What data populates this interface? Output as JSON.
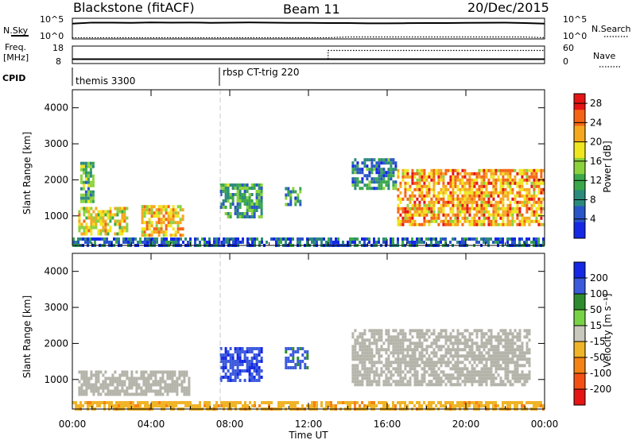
{
  "header": {
    "radar": "Blackstone (fitACF)",
    "beam": "Beam 11",
    "date": "20/Dec/2015"
  },
  "strip_labels": {
    "nsky": "N.Sky",
    "nsearch": "N.Search",
    "freq_top": "Freq.",
    "freq_unit": "[MHz]",
    "nave": "Nave",
    "cpid": "CPID",
    "noise_top_left": "10^5",
    "noise_bot_left": "10^0",
    "noise_top_right": "10^5",
    "noise_bot_right": "10^0",
    "freq_hi": "18",
    "freq_lo": "8",
    "nave_hi": "60",
    "nave_lo": "0"
  },
  "cpid_segments": [
    {
      "label": "themis 3300",
      "start_hour": 0.0
    },
    {
      "label": "rbsp CT-trig 220",
      "start_hour": 7.5
    }
  ],
  "x_axis": {
    "label": "Time UT",
    "ticks": [
      "00:00",
      "04:00",
      "08:00",
      "12:00",
      "16:00",
      "20:00",
      "00:00"
    ],
    "range_hours": [
      0,
      24
    ]
  },
  "colors": {
    "power_scale": [
      "#1428e6",
      "#2a55c8",
      "#2c8a7c",
      "#3aa84a",
      "#8cd23c",
      "#f0e61e",
      "#f5a81e",
      "#f56414",
      "#e61414"
    ],
    "velocity_scale": [
      "#1428e6",
      "#3c5adc",
      "#2e8c2e",
      "#78d246",
      "#c8c8bc",
      "#f0b428",
      "#f58214",
      "#f55014",
      "#e61414"
    ],
    "ground_scatter": "#b4b4aa"
  },
  "chart_data": [
    {
      "type": "line",
      "title": "Blackstone (fitACF)",
      "series": [
        {
          "name": "N.Sky",
          "x": [
            0,
            1,
            2,
            3,
            4,
            5,
            6,
            7,
            8,
            9,
            10,
            11,
            12,
            13,
            14,
            15,
            16,
            17,
            18,
            19,
            20,
            21,
            22,
            23,
            24
          ],
          "y": [
            5000,
            9000,
            9000,
            8000,
            10000,
            9000,
            9500,
            8000,
            9000,
            10000,
            9000,
            8000,
            8000,
            7000,
            7000,
            6000,
            6000,
            6500,
            7000,
            7000,
            8000,
            8500,
            9000,
            7000,
            5000
          ]
        },
        {
          "name": "N.Search",
          "x": [
            0,
            1,
            2,
            3,
            4,
            5,
            6,
            7,
            8,
            9,
            10,
            11,
            12,
            13,
            14,
            15,
            16,
            17,
            18,
            19,
            20,
            21,
            22,
            23,
            24
          ],
          "y": [
            2,
            2,
            2,
            2,
            2,
            2,
            2,
            2,
            2,
            2,
            2,
            2,
            2,
            2,
            3,
            3,
            3,
            3,
            3,
            3,
            3,
            3,
            3,
            3,
            2
          ]
        }
      ],
      "ylabel": "N.Sky",
      "ylabel_right": "N.Search",
      "ylim": [
        1,
        100000
      ]
    },
    {
      "type": "line",
      "series": [
        {
          "name": "Freq.",
          "x": [
            0,
            13,
            13,
            24
          ],
          "y": [
            10.5,
            10.5,
            10.5,
            10.5
          ]
        },
        {
          "name": "Nave",
          "x": [
            0,
            13,
            13,
            24
          ],
          "y": [
            15,
            15,
            45,
            45
          ]
        }
      ],
      "ylabel": "Freq. [MHz]",
      "ylabel_right": "Nave",
      "ylim": [
        8,
        18
      ],
      "ylim_right": [
        0,
        60
      ]
    },
    {
      "type": "heatmap",
      "xlabel": "Time UT",
      "ylabel": "Slant Range [km]",
      "ylim": [
        180,
        4500
      ],
      "yticks": [
        1000,
        2000,
        3000,
        4000
      ],
      "colorbar": {
        "label": "Power [dB]",
        "ticks": [
          4,
          8,
          12,
          16,
          20,
          24,
          28
        ],
        "range": [
          0,
          30
        ]
      },
      "regions": [
        {
          "t": [
            0.4,
            1.1
          ],
          "r": [
            1400,
            2500
          ],
          "value": 12
        },
        {
          "t": [
            0.3,
            2.8
          ],
          "r": [
            500,
            1250
          ],
          "value": 18
        },
        {
          "t": [
            3.5,
            5.6
          ],
          "r": [
            500,
            1300
          ],
          "value": 20
        },
        {
          "t": [
            7.5,
            9.6
          ],
          "r": [
            1000,
            1900
          ],
          "value": 11
        },
        {
          "t": [
            10.8,
            11.6
          ],
          "r": [
            1300,
            1800
          ],
          "value": 9
        },
        {
          "t": [
            14.2,
            16.5
          ],
          "r": [
            1800,
            2600
          ],
          "value": 8
        },
        {
          "t": [
            16.5,
            24.0
          ],
          "r": [
            800,
            2300
          ],
          "value": 22
        },
        {
          "t": [
            0.0,
            24.0
          ],
          "r": [
            200,
            400
          ],
          "value": 6
        }
      ]
    },
    {
      "type": "heatmap",
      "xlabel": "Time UT",
      "ylabel": "Slant Range [km]",
      "ylim": [
        180,
        4500
      ],
      "yticks": [
        1000,
        2000,
        3000,
        4000
      ],
      "colorbar": {
        "label": "Velocity [m s⁻¹]",
        "ticks": [
          200,
          100,
          50,
          15,
          -15,
          -50,
          -100,
          -200
        ],
        "range": [
          -250,
          250
        ]
      },
      "regions": [
        {
          "t": [
            0.3,
            5.9
          ],
          "r": [
            550,
            1250
          ],
          "value": 0,
          "ground_scatter": true
        },
        {
          "t": [
            7.5,
            9.6
          ],
          "r": [
            1000,
            1900
          ],
          "value": 180
        },
        {
          "t": [
            10.8,
            11.9
          ],
          "r": [
            1300,
            1900
          ],
          "value": 160
        },
        {
          "t": [
            14.2,
            23.2
          ],
          "r": [
            900,
            2400
          ],
          "value": 0,
          "ground_scatter": true
        },
        {
          "t": [
            0.0,
            24.0
          ],
          "r": [
            200,
            400
          ],
          "value": -60
        }
      ]
    }
  ]
}
